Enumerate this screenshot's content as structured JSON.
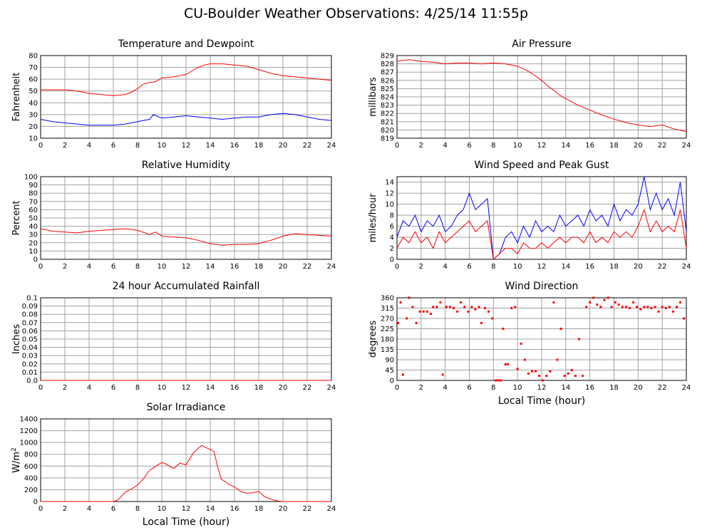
{
  "page_title": "CU-Boulder Weather Observations: 4/25/14 11:55p",
  "colors": {
    "series_red": "#ff0000",
    "series_blue": "#0000ff",
    "grid": "#a0a0a0"
  },
  "chart_data": [
    {
      "id": "temperature",
      "type": "line",
      "title": "Temperature and Dewpoint",
      "xlabel": "",
      "ylabel": "Fahrenheit",
      "xlim": [
        0,
        24
      ],
      "ylim": [
        10,
        80
      ],
      "xticks": [
        "0",
        "2",
        "4",
        "6",
        "8",
        "10",
        "12",
        "14",
        "16",
        "18",
        "20",
        "22",
        "24"
      ],
      "yticks": [
        "10",
        "20",
        "30",
        "40",
        "50",
        "60",
        "70",
        "80"
      ],
      "series": [
        {
          "color": "#ff0000",
          "x": [
            0,
            1,
            2,
            3,
            4,
            5,
            6,
            7,
            7.5,
            8,
            8.5,
            9,
            9.5,
            10,
            11,
            12,
            12.5,
            13,
            13.5,
            14,
            15,
            16,
            17,
            18,
            19,
            20,
            21,
            22,
            23,
            24
          ],
          "y": [
            51,
            51,
            51,
            50,
            48,
            47,
            46,
            47,
            49,
            52,
            56,
            57,
            58,
            61,
            62,
            64,
            67,
            70,
            72,
            73,
            73,
            72,
            71,
            68,
            65,
            63,
            62,
            61,
            60,
            59
          ]
        },
        {
          "color": "#0000ff",
          "x": [
            0,
            1,
            2,
            3,
            4,
            5,
            6,
            7,
            8,
            9,
            9.3,
            10,
            11,
            12,
            13,
            14,
            15,
            16,
            17,
            18,
            19,
            20,
            21,
            22,
            23,
            24
          ],
          "y": [
            26,
            24,
            23,
            22,
            21,
            21,
            21,
            22,
            24,
            26,
            30,
            27,
            28,
            29,
            28,
            27,
            26,
            27,
            28,
            28,
            30,
            31,
            30,
            28,
            26,
            25
          ]
        }
      ]
    },
    {
      "id": "pressure",
      "type": "line",
      "title": "Air Pressure",
      "xlabel": "",
      "ylabel": "millibars",
      "xlim": [
        0,
        24
      ],
      "ylim": [
        819,
        829
      ],
      "xticks": [
        "0",
        "2",
        "4",
        "6",
        "8",
        "10",
        "12",
        "14",
        "16",
        "18",
        "20",
        "22",
        "24"
      ],
      "yticks": [
        "819",
        "820",
        "821",
        "822",
        "823",
        "824",
        "825",
        "826",
        "827",
        "828",
        "829"
      ],
      "series": [
        {
          "color": "#ff0000",
          "x": [
            0,
            1,
            2,
            3,
            4,
            5,
            6,
            7,
            8,
            9,
            10,
            10.5,
            11,
            11.5,
            12,
            12.5,
            13,
            13.5,
            14,
            15,
            16,
            17,
            18,
            19,
            20,
            21,
            22,
            23,
            24
          ],
          "y": [
            828.3,
            828.5,
            828.3,
            828.2,
            828.0,
            828.1,
            828.1,
            828.0,
            828.1,
            828.0,
            827.7,
            827.4,
            827.0,
            826.5,
            826.0,
            825.3,
            824.8,
            824.2,
            823.8,
            823.0,
            822.4,
            821.8,
            821.3,
            820.9,
            820.6,
            820.4,
            820.6,
            820.1,
            819.8
          ]
        }
      ]
    },
    {
      "id": "humidity",
      "type": "line",
      "title": "Relative Humidity",
      "xlabel": "",
      "ylabel": "Percent",
      "xlim": [
        0,
        24
      ],
      "ylim": [
        0,
        100
      ],
      "xticks": [
        "0",
        "2",
        "4",
        "6",
        "8",
        "10",
        "12",
        "14",
        "16",
        "18",
        "20",
        "22",
        "24"
      ],
      "yticks": [
        "0",
        "10",
        "20",
        "30",
        "40",
        "50",
        "60",
        "70",
        "80",
        "90",
        "100"
      ],
      "series": [
        {
          "color": "#ff0000",
          "x": [
            0,
            1,
            2,
            3,
            4,
            5,
            6,
            7,
            8,
            9,
            9.5,
            10,
            11,
            12,
            13,
            14,
            15,
            16,
            17,
            18,
            19,
            20,
            21,
            22,
            23,
            24
          ],
          "y": [
            37,
            34,
            33,
            32,
            34,
            35,
            36,
            37,
            35,
            30,
            33,
            28,
            27,
            26,
            23,
            19,
            17,
            18,
            18,
            19,
            23,
            28,
            31,
            30,
            29,
            28
          ]
        }
      ]
    },
    {
      "id": "wind_speed",
      "type": "line",
      "title": "Wind Speed and Peak Gust",
      "xlabel": "",
      "ylabel": "miles/hour",
      "xlim": [
        0,
        24
      ],
      "ylim": [
        0,
        15
      ],
      "xticks": [
        "0",
        "2",
        "4",
        "6",
        "8",
        "10",
        "12",
        "14",
        "16",
        "18",
        "20",
        "22",
        "24"
      ],
      "yticks": [
        "0",
        "2",
        "4",
        "6",
        "8",
        "10",
        "12",
        "14"
      ],
      "series": [
        {
          "color": "#0000ff",
          "x": [
            0,
            0.5,
            1,
            1.5,
            2,
            2.5,
            3,
            3.5,
            4,
            4.5,
            5,
            5.5,
            6,
            6.5,
            7,
            7.5,
            8,
            8.5,
            9,
            9.5,
            10,
            10.5,
            11,
            11.5,
            12,
            12.5,
            13,
            13.5,
            14,
            14.5,
            15,
            15.5,
            16,
            16.5,
            17,
            17.5,
            18,
            18.5,
            19,
            19.5,
            20,
            20.5,
            21,
            21.5,
            22,
            22.5,
            23,
            23.5,
            24
          ],
          "y": [
            4,
            7,
            6,
            8,
            5,
            7,
            6,
            8,
            5,
            6,
            8,
            9,
            12,
            9,
            10,
            11,
            0,
            1,
            4,
            5,
            3,
            6,
            4,
            7,
            5,
            6,
            5,
            8,
            6,
            7,
            8,
            6,
            9,
            7,
            8,
            6,
            10,
            7,
            9,
            8,
            10,
            15,
            9,
            12,
            9,
            11,
            8,
            14,
            5
          ]
        },
        {
          "color": "#ff0000",
          "x": [
            0,
            0.5,
            1,
            1.5,
            2,
            2.5,
            3,
            3.5,
            4,
            4.5,
            5,
            5.5,
            6,
            6.5,
            7,
            7.5,
            8,
            8.5,
            9,
            9.5,
            10,
            10.5,
            11,
            11.5,
            12,
            12.5,
            13,
            13.5,
            14,
            14.5,
            15,
            15.5,
            16,
            16.5,
            17,
            17.5,
            18,
            18.5,
            19,
            19.5,
            20,
            20.5,
            21,
            21.5,
            22,
            22.5,
            23,
            23.5,
            24
          ],
          "y": [
            2,
            4,
            3,
            5,
            3,
            4,
            2,
            5,
            3,
            4,
            5,
            6,
            7,
            5,
            6,
            7,
            0,
            1,
            2,
            2,
            1,
            3,
            2,
            2,
            3,
            2,
            3,
            4,
            3,
            4,
            4,
            3,
            5,
            3,
            4,
            3,
            5,
            4,
            5,
            4,
            6,
            9,
            5,
            7,
            5,
            6,
            5,
            9,
            2
          ]
        }
      ]
    },
    {
      "id": "rainfall",
      "type": "line",
      "title": "24 hour Accumulated Rainfall",
      "xlabel": "",
      "ylabel": "Inches",
      "xlim": [
        0,
        24
      ],
      "ylim": [
        0,
        0.1
      ],
      "xticks": [
        "0",
        "2",
        "4",
        "6",
        "8",
        "10",
        "12",
        "14",
        "16",
        "18",
        "20",
        "22",
        "24"
      ],
      "yticks": [
        "0.0",
        "0.01",
        "0.02",
        "0.03",
        "0.04",
        "0.05",
        "0.06",
        "0.07",
        "0.08",
        "0.09",
        "0.1"
      ],
      "series": [
        {
          "color": "#ff0000",
          "x": [
            0,
            24
          ],
          "y": [
            0,
            0
          ]
        }
      ]
    },
    {
      "id": "wind_direction",
      "type": "scatter",
      "title": "Wind Direction",
      "xlabel": "Local Time (hour)",
      "ylabel": "degrees",
      "xlim": [
        0,
        24
      ],
      "ylim": [
        0,
        360
      ],
      "xticks": [
        "0",
        "2",
        "4",
        "6",
        "8",
        "10",
        "12",
        "14",
        "16",
        "18",
        "20",
        "22",
        "24"
      ],
      "yticks": [
        "0",
        "45",
        "90",
        "135",
        "180",
        "225",
        "270",
        "315",
        "360"
      ],
      "series": [
        {
          "color": "#ff0000",
          "x": [
            0.1,
            0.3,
            0.5,
            0.8,
            1.0,
            1.3,
            1.6,
            1.9,
            2.2,
            2.5,
            2.8,
            3.0,
            3.3,
            3.6,
            3.8,
            4.1,
            4.4,
            4.7,
            5.0,
            5.3,
            5.6,
            5.9,
            6.2,
            6.5,
            6.8,
            7.0,
            7.3,
            7.6,
            7.9,
            8.2,
            8.4,
            8.6,
            8.8,
            9.0,
            9.2,
            9.5,
            9.8,
            10.0,
            10.3,
            10.6,
            10.9,
            11.2,
            11.5,
            11.8,
            12.1,
            12.4,
            12.7,
            13.0,
            13.3,
            13.6,
            13.9,
            14.2,
            14.5,
            14.8,
            15.1,
            15.4,
            15.7,
            16.0,
            16.3,
            16.6,
            16.9,
            17.2,
            17.5,
            17.8,
            18.1,
            18.4,
            18.7,
            19.0,
            19.3,
            19.6,
            19.9,
            20.2,
            20.5,
            20.8,
            21.1,
            21.4,
            21.7,
            22.0,
            22.3,
            22.6,
            22.9,
            23.2,
            23.5,
            23.8
          ],
          "y": [
            250,
            340,
            25,
            270,
            360,
            320,
            250,
            300,
            300,
            300,
            290,
            320,
            320,
            340,
            25,
            320,
            320,
            315,
            300,
            340,
            320,
            300,
            320,
            310,
            320,
            250,
            315,
            300,
            270,
            0,
            0,
            0,
            225,
            70,
            70,
            315,
            320,
            50,
            160,
            90,
            30,
            40,
            40,
            20,
            0,
            20,
            40,
            340,
            90,
            225,
            20,
            30,
            45,
            20,
            180,
            20,
            320,
            340,
            360,
            330,
            320,
            350,
            360,
            320,
            340,
            330,
            320,
            320,
            315,
            340,
            320,
            310,
            320,
            320,
            315,
            320,
            300,
            320,
            315,
            320,
            300,
            320,
            340,
            270
          ]
        }
      ]
    },
    {
      "id": "solar",
      "type": "line",
      "title": "Solar Irradiance",
      "xlabel": "Local Time (hour)",
      "ylabel": "W/m2",
      "xlim": [
        0,
        24
      ],
      "ylim": [
        0,
        1400
      ],
      "xticks": [
        "0",
        "2",
        "4",
        "6",
        "8",
        "10",
        "12",
        "14",
        "16",
        "18",
        "20",
        "22",
        "24"
      ],
      "yticks": [
        "0",
        "200",
        "400",
        "600",
        "800",
        "1000",
        "1200",
        "1400"
      ],
      "series": [
        {
          "color": "#ff0000",
          "x": [
            0,
            5.9,
            6.2,
            6.5,
            7,
            7.5,
            8,
            8.5,
            9,
            9.5,
            10,
            10.3,
            10.6,
            11,
            11.5,
            12,
            12.3,
            12.6,
            13,
            13.3,
            13.6,
            14,
            14.3,
            14.6,
            14.9,
            15.2,
            15.5,
            16,
            16.5,
            17,
            17.5,
            18,
            18.5,
            19,
            19.5,
            20,
            24
          ],
          "y": [
            0,
            0,
            10,
            50,
            160,
            210,
            280,
            390,
            530,
            600,
            660,
            640,
            600,
            560,
            650,
            620,
            720,
            820,
            900,
            950,
            920,
            880,
            850,
            600,
            380,
            340,
            290,
            250,
            170,
            140,
            150,
            170,
            80,
            40,
            10,
            0,
            0
          ]
        }
      ]
    }
  ]
}
